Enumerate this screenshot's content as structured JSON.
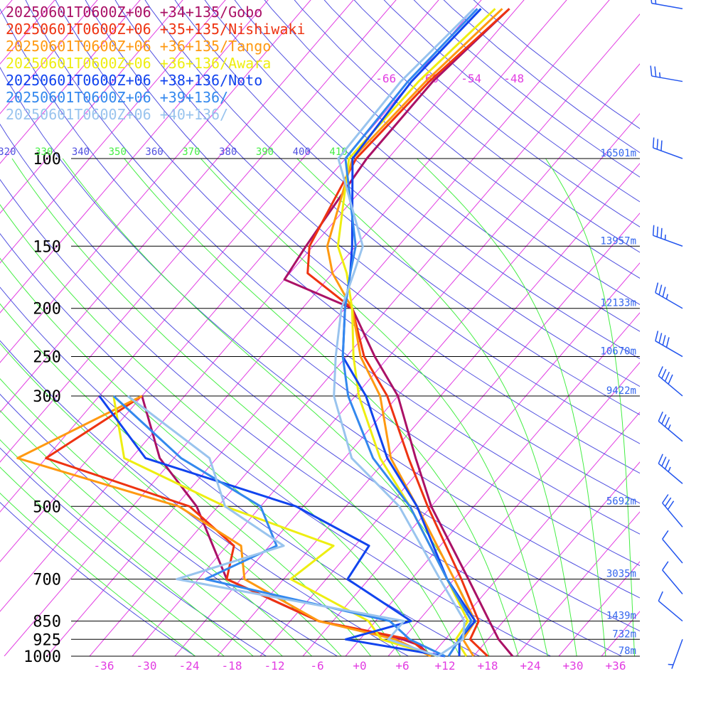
{
  "chart_data": {
    "type": "line",
    "subtype": "skew-T log-P sounding",
    "title": "",
    "xlabel": "",
    "ylabel": "",
    "pressure_ticks": [
      100,
      150,
      200,
      250,
      300,
      500,
      700,
      850,
      925,
      1000
    ],
    "pressure_tick_labels": [
      "100",
      "150",
      "200",
      "250",
      "300",
      "500",
      "700",
      "850",
      "925",
      "1000"
    ],
    "height_labels": [
      {
        "p": 100,
        "text": "16501m"
      },
      {
        "p": 150,
        "text": "13957m"
      },
      {
        "p": 200,
        "text": "12133m"
      },
      {
        "p": 250,
        "text": "10670m"
      },
      {
        "p": 300,
        "text": "9422m"
      },
      {
        "p": 500,
        "text": "5692m"
      },
      {
        "p": 700,
        "text": "3035m"
      },
      {
        "p": 850,
        "text": "1439m"
      },
      {
        "p": 925,
        "text": "732m"
      },
      {
        "p": 1000,
        "text": "78m"
      }
    ],
    "temp_ticks": [
      -36,
      -30,
      -24,
      -18,
      -12,
      -6,
      0,
      6,
      12,
      18,
      24,
      30,
      36
    ],
    "temp_tick_labels": [
      "-36",
      "-30",
      "-24",
      "-18",
      "-12",
      "-6",
      "+0",
      "+6",
      "+12",
      "+18",
      "+24",
      "+30",
      "+36"
    ],
    "upper_isotherm_labels": [
      {
        "t": -66,
        "text": "-66"
      },
      {
        "t": -60,
        "text": "-60"
      },
      {
        "t": -54,
        "text": "-54"
      },
      {
        "t": -48,
        "text": "-48"
      }
    ],
    "theta_labels": [
      "320",
      "330",
      "340",
      "350",
      "360",
      "370",
      "380",
      "390",
      "400",
      "410"
    ],
    "colors": {
      "isotherm": "#e23de2",
      "dry_adiabat": "#5050e0",
      "moist_adiabat": "#44ee44",
      "isobar": "#000000",
      "height_label": "#3366ee",
      "tick_label": "#e23de2",
      "wind_barb": "#2255ee"
    },
    "series": [
      {
        "name": "20250601T0600Z+06 +34+135/Gobo",
        "color": "#aa1166",
        "temperature": [
          [
            1000,
            21.5
          ],
          [
            925,
            17.5
          ],
          [
            850,
            14.0
          ],
          [
            700,
            6.0
          ],
          [
            500,
            -8.0
          ],
          [
            400,
            -16.0
          ],
          [
            300,
            -26.0
          ],
          [
            250,
            -34.0
          ],
          [
            200,
            -43.0
          ],
          [
            175,
            -56.0
          ],
          [
            150,
            -57.0
          ],
          [
            100,
            -59.0
          ],
          [
            70,
            -59.0
          ],
          [
            50,
            -57.0
          ]
        ],
        "dewpoint": [
          [
            1000,
            10.0
          ],
          [
            950,
            7.0
          ],
          [
            925,
            4.0
          ],
          [
            850,
            -10.0
          ],
          [
            700,
            -28.0
          ],
          [
            500,
            -41.0
          ],
          [
            400,
            -52.0
          ],
          [
            300,
            -62.0
          ]
        ]
      },
      {
        "name": "20250601T0600Z+06 +35+135/Nishiwaki",
        "color": "#ee3311",
        "temperature": [
          [
            1000,
            18.0
          ],
          [
            925,
            13.5
          ],
          [
            850,
            12.5
          ],
          [
            700,
            5.0
          ],
          [
            500,
            -8.5
          ],
          [
            400,
            -17.0
          ],
          [
            300,
            -27.5
          ],
          [
            250,
            -35.5
          ],
          [
            200,
            -43.0
          ],
          [
            170,
            -53.5
          ],
          [
            150,
            -56.5
          ],
          [
            100,
            -60.5
          ],
          [
            70,
            -59.5
          ],
          [
            50,
            -57.0
          ]
        ],
        "dewpoint": [
          [
            1000,
            10.0
          ],
          [
            925,
            5.0
          ],
          [
            850,
            -10.0
          ],
          [
            700,
            -28.0
          ],
          [
            600,
            -31.0
          ],
          [
            500,
            -42.0
          ],
          [
            400,
            -68.0
          ],
          [
            300,
            -62.0
          ]
        ]
      },
      {
        "name": "20250601T0600Z+06 +36+135/Tango",
        "color": "#ff9911",
        "temperature": [
          [
            1000,
            16.0
          ],
          [
            925,
            12.5
          ],
          [
            850,
            12.0
          ],
          [
            700,
            4.0
          ],
          [
            500,
            -10.0
          ],
          [
            400,
            -19.5
          ],
          [
            300,
            -28.5
          ],
          [
            250,
            -36.0
          ],
          [
            200,
            -43.0
          ],
          [
            170,
            -50.0
          ],
          [
            150,
            -54.0
          ],
          [
            100,
            -61.0
          ],
          [
            70,
            -60.0
          ],
          [
            50,
            -58.0
          ]
        ],
        "dewpoint": [
          [
            1000,
            10.0
          ],
          [
            925,
            3.0
          ],
          [
            850,
            -10.0
          ],
          [
            700,
            -25.5
          ],
          [
            600,
            -30.0
          ],
          [
            500,
            -43.5
          ],
          [
            400,
            -72.0
          ],
          [
            300,
            -62.0
          ]
        ]
      },
      {
        "name": "20250601T0600Z+06 +36+136/Awara",
        "color": "#eeee11",
        "temperature": [
          [
            1000,
            15.0
          ],
          [
            925,
            11.5
          ],
          [
            850,
            11.0
          ],
          [
            700,
            3.0
          ],
          [
            500,
            -11.0
          ],
          [
            400,
            -21.0
          ],
          [
            300,
            -31.5
          ],
          [
            250,
            -37.0
          ],
          [
            200,
            -43.0
          ],
          [
            170,
            -48.0
          ],
          [
            150,
            -52.5
          ],
          [
            100,
            -61.5
          ],
          [
            70,
            -61.0
          ],
          [
            50,
            -59.0
          ]
        ],
        "dewpoint": [
          [
            1000,
            11.0
          ],
          [
            925,
            1.0
          ],
          [
            850,
            -3.0
          ],
          [
            700,
            -19.0
          ],
          [
            600,
            -17.0
          ],
          [
            500,
            -37.0
          ],
          [
            400,
            -57.0
          ],
          [
            300,
            -66.0
          ]
        ]
      },
      {
        "name": "20250601T0600Z+06 +38+136/Noto",
        "color": "#1144ee",
        "temperature": [
          [
            1000,
            14.0
          ],
          [
            925,
            12.0
          ],
          [
            850,
            12.0
          ],
          [
            700,
            3.0
          ],
          [
            500,
            -10.0
          ],
          [
            400,
            -20.0
          ],
          [
            300,
            -30.5
          ],
          [
            250,
            -38.5
          ],
          [
            200,
            -44.0
          ],
          [
            170,
            -47.5
          ],
          [
            150,
            -50.5
          ],
          [
            100,
            -61.0
          ],
          [
            70,
            -62.0
          ],
          [
            50,
            -61.0
          ]
        ],
        "dewpoint": [
          [
            1000,
            12.0
          ],
          [
            925,
            -4.0
          ],
          [
            850,
            3.0
          ],
          [
            700,
            -11.0
          ],
          [
            600,
            -12.0
          ],
          [
            500,
            -27.0
          ],
          [
            400,
            -54.0
          ],
          [
            300,
            -68.0
          ]
        ]
      },
      {
        "name": "20250601T0600Z+06 +39+136/",
        "color": "#3388ee",
        "temperature": [
          [
            1000,
            12.5
          ],
          [
            925,
            12.0
          ],
          [
            850,
            11.5
          ],
          [
            700,
            3.0
          ],
          [
            500,
            -11.0
          ],
          [
            400,
            -22.0
          ],
          [
            300,
            -33.0
          ],
          [
            250,
            -38.5
          ],
          [
            200,
            -44.0
          ],
          [
            170,
            -47.5
          ],
          [
            150,
            -50.0
          ],
          [
            100,
            -62.0
          ],
          [
            70,
            -62.5
          ],
          [
            50,
            -61.5
          ]
        ],
        "dewpoint": [
          [
            1000,
            12.0
          ],
          [
            925,
            5.0
          ],
          [
            850,
            0.0
          ],
          [
            700,
            -31.0
          ],
          [
            600,
            -25.0
          ],
          [
            500,
            -32.0
          ],
          [
            400,
            -49.0
          ],
          [
            300,
            -66.0
          ]
        ]
      },
      {
        "name": "20250601T0600Z+06 +40+136/",
        "color": "#99c4ee",
        "temperature": [
          [
            1000,
            11.0
          ],
          [
            925,
            12.5
          ],
          [
            850,
            10.5
          ],
          [
            700,
            2.0
          ],
          [
            500,
            -12.5
          ],
          [
            400,
            -25.0
          ],
          [
            300,
            -35.0
          ],
          [
            250,
            -39.5
          ],
          [
            200,
            -44.5
          ],
          [
            170,
            -47.0
          ],
          [
            150,
            -49.0
          ],
          [
            100,
            -63.0
          ],
          [
            70,
            -63.5
          ],
          [
            50,
            -62.0
          ]
        ],
        "dewpoint": [
          [
            1000,
            11.0
          ],
          [
            925,
            2.0
          ],
          [
            850,
            2.0
          ],
          [
            700,
            -35.0
          ],
          [
            600,
            -24.0
          ],
          [
            500,
            -37.0
          ],
          [
            400,
            -45.0
          ],
          [
            300,
            -64.0
          ]
        ]
      }
    ],
    "wind_barbs": [
      {
        "p": 925,
        "dir": 200,
        "speed_kt": 5
      },
      {
        "p": 850,
        "dir": 310,
        "speed_kt": 10
      },
      {
        "p": 750,
        "dir": 320,
        "speed_kt": 10
      },
      {
        "p": 650,
        "dir": 320,
        "speed_kt": 10
      },
      {
        "p": 550,
        "dir": 320,
        "speed_kt": 30
      },
      {
        "p": 450,
        "dir": 310,
        "speed_kt": 35
      },
      {
        "p": 370,
        "dir": 310,
        "speed_kt": 35
      },
      {
        "p": 300,
        "dir": 310,
        "speed_kt": 40
      },
      {
        "p": 250,
        "dir": 300,
        "speed_kt": 40
      },
      {
        "p": 200,
        "dir": 300,
        "speed_kt": 35
      },
      {
        "p": 150,
        "dir": 290,
        "speed_kt": 35
      },
      {
        "p": 100,
        "dir": 290,
        "speed_kt": 30
      },
      {
        "p": 70,
        "dir": 280,
        "speed_kt": 25
      },
      {
        "p": 50,
        "dir": 280,
        "speed_kt": 15
      }
    ]
  }
}
